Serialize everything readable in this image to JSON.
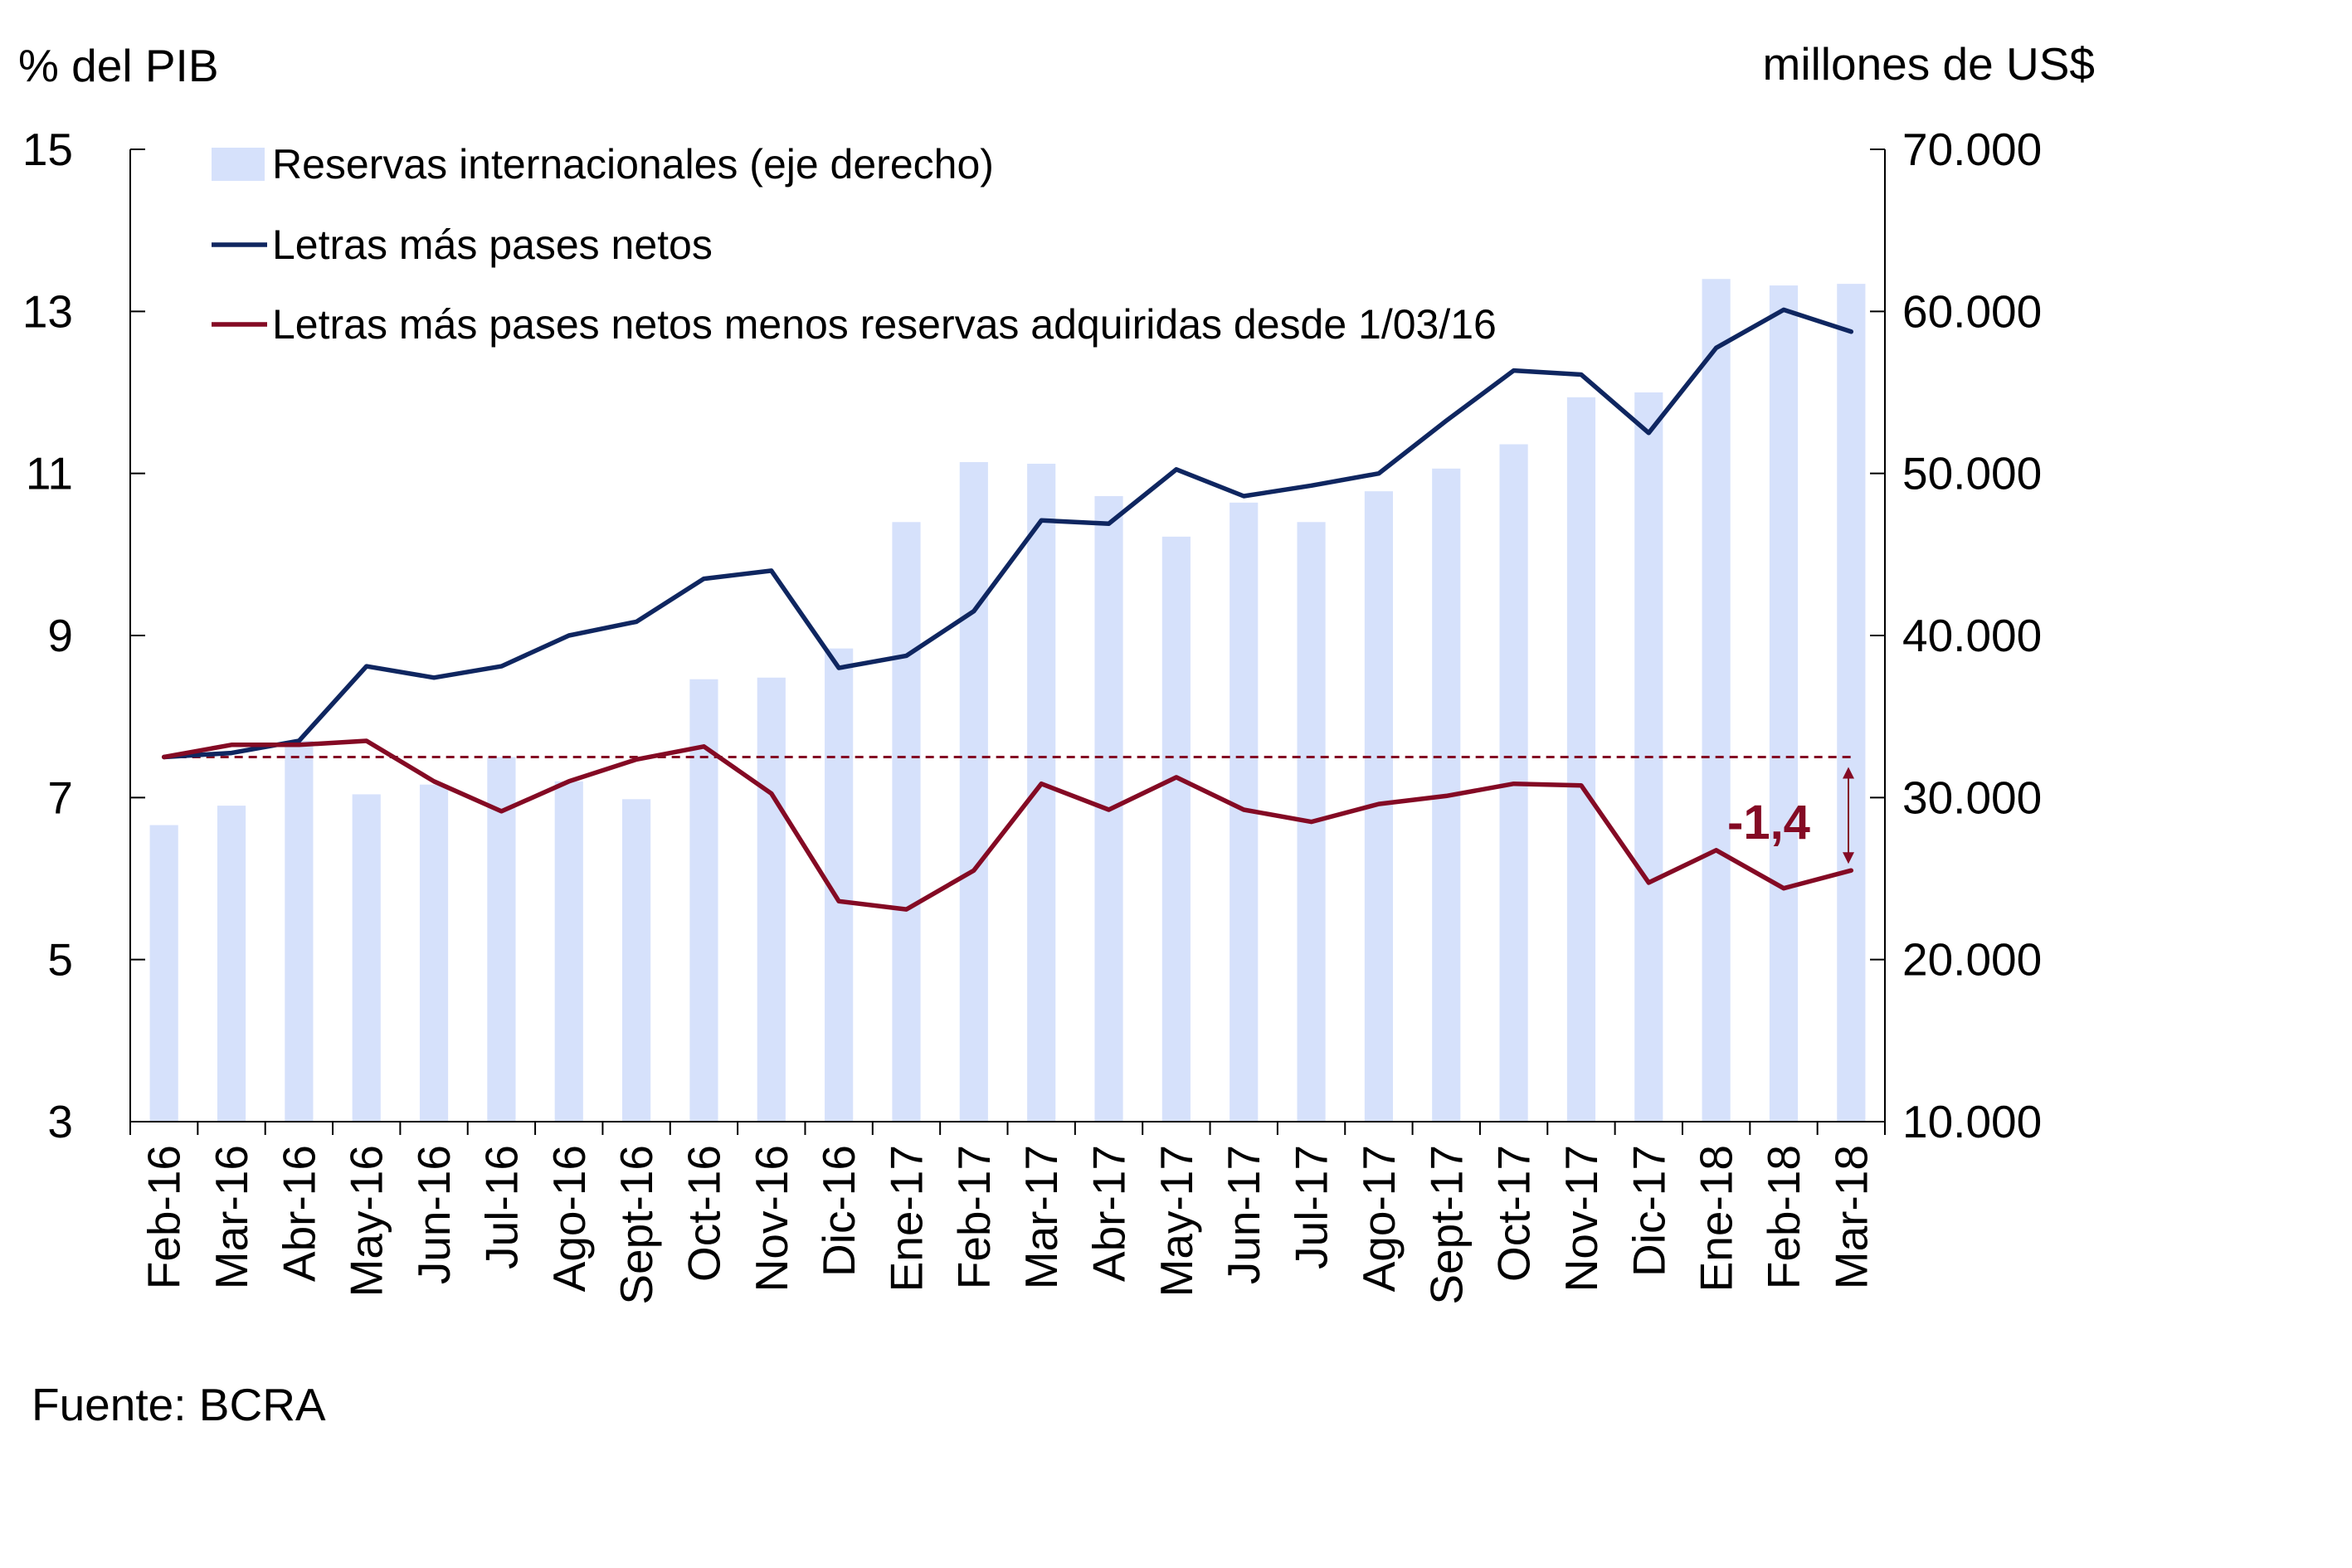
{
  "chart_data": {
    "type": "bar+line",
    "left_axis_title": "% del PIB",
    "right_axis_title": "millones de US$",
    "left_ylim": [
      3,
      15
    ],
    "left_ticks": [
      "3",
      "5",
      "7",
      "9",
      "11",
      "13",
      "15"
    ],
    "right_ylim": [
      10000,
      70000
    ],
    "right_ticks": [
      "10.000",
      "20.000",
      "30.000",
      "40.000",
      "50.000",
      "60.000",
      "70.000"
    ],
    "categories": [
      "Feb-16",
      "Mar-16",
      "Abr-16",
      "May-16",
      "Jun-16",
      "Jul-16",
      "Ago-16",
      "Sept-16",
      "Oct-16",
      "Nov-16",
      "Dic-16",
      "Ene-17",
      "Feb-17",
      "Mar-17",
      "Abr-17",
      "May-17",
      "Jun-17",
      "Jul-17",
      "Ago-17",
      "Sept-17",
      "Oct-17",
      "Nov-17",
      "Dic-17",
      "Ene-18",
      "Feb-18",
      "Mar-18"
    ],
    "series": [
      {
        "name": "Reservas internacionales (eje derecho)",
        "kind": "bar",
        "axis": "right",
        "color": "#d6e1fb",
        "values": [
          28300,
          29500,
          33500,
          30200,
          30800,
          32500,
          31000,
          29900,
          37300,
          37400,
          39200,
          47000,
          50700,
          50600,
          48600,
          46100,
          48200,
          47000,
          48900,
          50300,
          51800,
          54700,
          55000,
          62000,
          61600,
          61700
        ]
      },
      {
        "name": "Letras más pases netos",
        "kind": "line",
        "axis": "left",
        "color": "#0f2660",
        "values": [
          7.5,
          7.55,
          7.7,
          8.62,
          8.48,
          8.62,
          9.0,
          9.17,
          9.7,
          9.8,
          8.6,
          8.75,
          9.3,
          10.42,
          10.38,
          11.05,
          10.72,
          10.85,
          11.0,
          11.65,
          12.27,
          12.22,
          11.5,
          12.55,
          13.02,
          12.75
        ]
      },
      {
        "name": "Letras más pases netos menos reservas adquiridas desde 1/03/16",
        "kind": "line",
        "axis": "left",
        "color": "#840a24",
        "values": [
          7.5,
          7.65,
          7.65,
          7.7,
          7.2,
          6.83,
          7.2,
          7.47,
          7.63,
          7.05,
          5.72,
          5.62,
          6.1,
          7.17,
          6.85,
          7.25,
          6.85,
          6.7,
          6.92,
          7.02,
          7.17,
          7.15,
          5.95,
          6.35,
          5.88,
          6.1
        ]
      }
    ],
    "reference_line": {
      "value": 7.5,
      "color": "#840a24",
      "style": "dashed"
    },
    "annotation": {
      "text": "-1,4",
      "color": "#840a24"
    },
    "legend_placement": "top-left",
    "source": "Fuente: BCRA"
  }
}
